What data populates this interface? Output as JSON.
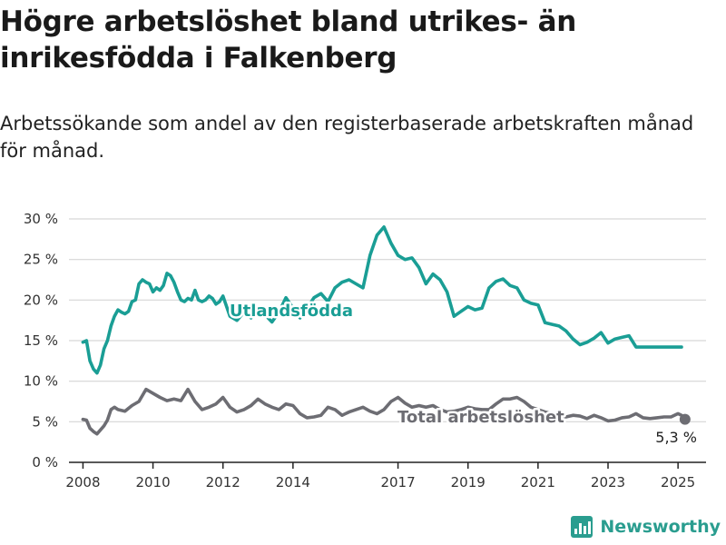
{
  "title": "Högre arbetslöshet bland utrikes- än inrikesfödda i Falkenberg",
  "subtitle": "Arbetssökande som andel av den registerbaserade arbetskraften månad för månad.",
  "brand": {
    "name": "Newsworthy"
  },
  "colors": {
    "utlandsfodda": "#1a9e95",
    "total": "#6d6d73",
    "grid": "#d6d6d6",
    "axis": "#222222"
  },
  "chart_data": {
    "type": "line",
    "y_ticks": [
      "0 %",
      "5 %",
      "10 %",
      "15 %",
      "20 %",
      "25 %",
      "30 %"
    ],
    "x_ticks": [
      "2008",
      "2010",
      "2012",
      "2014",
      "2017",
      "2019",
      "2021",
      "2023",
      "2025"
    ],
    "ylim": [
      0,
      30
    ],
    "xlim": [
      2007.6,
      2025.8
    ],
    "grid": true,
    "end_label": "5,3 %",
    "series": [
      {
        "name": "Utlandsfödda",
        "x": [
          2008.0,
          2008.1,
          2008.2,
          2008.3,
          2008.4,
          2008.5,
          2008.6,
          2008.7,
          2008.8,
          2008.9,
          2009.0,
          2009.1,
          2009.2,
          2009.3,
          2009.4,
          2009.5,
          2009.6,
          2009.7,
          2009.8,
          2009.9,
          2010.0,
          2010.1,
          2010.2,
          2010.3,
          2010.4,
          2010.5,
          2010.6,
          2010.7,
          2010.8,
          2010.9,
          2011.0,
          2011.1,
          2011.2,
          2011.3,
          2011.4,
          2011.5,
          2011.6,
          2011.7,
          2011.8,
          2011.9,
          2012.0,
          2012.2,
          2012.4,
          2012.6,
          2012.8,
          2013.0,
          2013.2,
          2013.4,
          2013.6,
          2013.8,
          2014.0,
          2014.2,
          2014.4,
          2014.6,
          2014.8,
          2015.0,
          2015.2,
          2015.4,
          2015.6,
          2015.8,
          2016.0,
          2016.2,
          2016.4,
          2016.6,
          2016.8,
          2017.0,
          2017.2,
          2017.4,
          2017.6,
          2017.8,
          2018.0,
          2018.2,
          2018.4,
          2018.6,
          2018.8,
          2019.0,
          2019.2,
          2019.4,
          2019.6,
          2019.8,
          2020.0,
          2020.2,
          2020.4,
          2020.6,
          2020.8,
          2021.0,
          2021.2,
          2021.4,
          2021.6,
          2021.8,
          2022.0,
          2022.2,
          2022.4,
          2022.6,
          2022.8,
          2023.0,
          2023.2,
          2023.4,
          2023.6,
          2023.8,
          2024.0,
          2024.2,
          2024.4,
          2024.6,
          2024.8,
          2025.0,
          2025.1
        ],
        "values": [
          14.8,
          15.0,
          12.5,
          11.5,
          11.0,
          12.0,
          14.0,
          15.0,
          16.8,
          18.0,
          18.8,
          18.5,
          18.3,
          18.6,
          19.8,
          20.0,
          22.0,
          22.5,
          22.2,
          22.0,
          21.0,
          21.5,
          21.2,
          21.8,
          23.3,
          23.0,
          22.2,
          21.0,
          20.0,
          19.8,
          20.2,
          20.0,
          21.2,
          20.0,
          19.8,
          20.0,
          20.5,
          20.2,
          19.5,
          19.8,
          20.5,
          18.0,
          17.5,
          18.5,
          17.8,
          19.0,
          18.2,
          17.3,
          18.5,
          20.3,
          19.0,
          17.8,
          19.0,
          20.3,
          20.8,
          19.8,
          21.5,
          22.2,
          22.5,
          22.0,
          21.5,
          25.5,
          28.0,
          29.0,
          27.0,
          25.5,
          25.0,
          25.2,
          24.0,
          22.0,
          23.2,
          22.5,
          21.0,
          18.0,
          18.6,
          19.2,
          18.8,
          19.0,
          21.5,
          22.3,
          22.6,
          21.8,
          21.5,
          20.0,
          19.6,
          19.4,
          17.2,
          17.0,
          16.8,
          16.2,
          15.2,
          14.5,
          14.8,
          15.3,
          16.0,
          14.7,
          15.2,
          15.4,
          15.6,
          14.2,
          14.2,
          14.2,
          14.2,
          14.2,
          14.2,
          14.2,
          14.2
        ]
      },
      {
        "name": "Total arbetslöshet",
        "x": [
          2008.0,
          2008.1,
          2008.2,
          2008.3,
          2008.4,
          2008.5,
          2008.6,
          2008.7,
          2008.8,
          2008.9,
          2009.0,
          2009.2,
          2009.4,
          2009.6,
          2009.8,
          2010.0,
          2010.2,
          2010.4,
          2010.6,
          2010.8,
          2011.0,
          2011.2,
          2011.4,
          2011.6,
          2011.8,
          2012.0,
          2012.2,
          2012.4,
          2012.6,
          2012.8,
          2013.0,
          2013.2,
          2013.4,
          2013.6,
          2013.8,
          2014.0,
          2014.2,
          2014.4,
          2014.6,
          2014.8,
          2015.0,
          2015.2,
          2015.4,
          2015.6,
          2015.8,
          2016.0,
          2016.2,
          2016.4,
          2016.6,
          2016.8,
          2017.0,
          2017.2,
          2017.4,
          2017.6,
          2017.8,
          2018.0,
          2018.2,
          2018.4,
          2018.6,
          2018.8,
          2019.0,
          2019.2,
          2019.4,
          2019.6,
          2019.8,
          2020.0,
          2020.2,
          2020.4,
          2020.6,
          2020.8,
          2021.0,
          2021.2,
          2021.4,
          2021.6,
          2021.8,
          2022.0,
          2022.2,
          2022.4,
          2022.6,
          2022.8,
          2023.0,
          2023.2,
          2023.4,
          2023.6,
          2023.8,
          2024.0,
          2024.2,
          2024.4,
          2024.6,
          2024.8,
          2025.0,
          2025.1,
          2025.2
        ],
        "values": [
          5.3,
          5.2,
          4.2,
          3.8,
          3.5,
          4.0,
          4.5,
          5.2,
          6.5,
          6.8,
          6.5,
          6.3,
          7.0,
          7.5,
          9.0,
          8.5,
          8.0,
          7.6,
          7.8,
          7.6,
          9.0,
          7.5,
          6.5,
          6.8,
          7.2,
          8.0,
          6.8,
          6.2,
          6.5,
          7.0,
          7.8,
          7.2,
          6.8,
          6.5,
          7.2,
          7.0,
          6.0,
          5.5,
          5.6,
          5.8,
          6.8,
          6.5,
          5.8,
          6.2,
          6.5,
          6.8,
          6.3,
          6.0,
          6.5,
          7.5,
          8.0,
          7.3,
          6.8,
          7.0,
          6.8,
          7.0,
          6.5,
          6.2,
          6.3,
          6.5,
          6.8,
          6.6,
          6.5,
          6.5,
          7.2,
          7.8,
          7.8,
          8.0,
          7.5,
          6.8,
          6.5,
          6.2,
          6.0,
          5.8,
          5.6,
          5.8,
          5.7,
          5.4,
          5.8,
          5.5,
          5.1,
          5.2,
          5.5,
          5.6,
          6.0,
          5.5,
          5.4,
          5.5,
          5.6,
          5.6,
          6.0,
          5.8,
          5.3
        ]
      }
    ]
  }
}
